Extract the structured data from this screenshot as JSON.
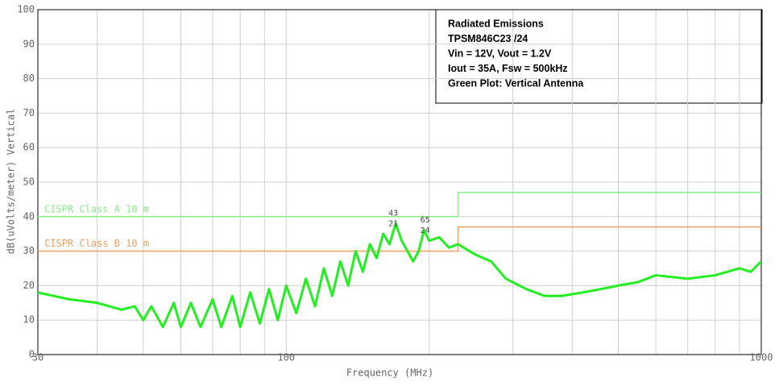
{
  "chart_data": {
    "type": "line",
    "box_lines": [
      "Radiated Emissions",
      "TPSM846C23 /24",
      "Vin = 12V, Vout = 1.2V",
      "Iout = 35A, Fsw = 500kHz",
      "Green Plot: Vertical Antenna"
    ],
    "xlabel": "Frequency (MHz)",
    "ylabel": "dB(uVolts/meter) Vertical",
    "xscale": "log",
    "xlim": [
      30,
      1000
    ],
    "ylim": [
      0,
      100
    ],
    "xticks": [
      30,
      100,
      1000
    ],
    "xgrid": [
      40,
      50,
      60,
      70,
      80,
      90,
      200,
      300,
      400,
      500,
      600,
      700,
      800,
      900
    ],
    "yticks": [
      10,
      20,
      30,
      40,
      50,
      60,
      70,
      80,
      90,
      100
    ],
    "grid": true,
    "x": [
      30,
      35,
      40,
      45,
      48,
      50,
      52,
      55,
      58,
      60,
      63,
      66,
      70,
      73,
      77,
      80,
      84,
      88,
      92,
      96,
      100,
      105,
      110,
      115,
      120,
      125,
      130,
      135,
      140,
      145,
      150,
      155,
      160,
      165,
      170,
      175,
      180,
      185,
      190,
      195,
      200,
      210,
      220,
      230,
      250,
      270,
      290,
      320,
      350,
      380,
      420,
      460,
      500,
      550,
      600,
      700,
      800,
      900,
      950,
      1000
    ],
    "values": [
      18,
      16,
      15,
      13,
      14,
      10,
      14,
      8,
      15,
      8,
      15,
      8,
      16,
      8,
      17,
      8,
      18,
      9,
      19,
      10,
      20,
      12,
      22,
      14,
      25,
      17,
      27,
      20,
      30,
      24,
      32,
      28,
      35,
      32,
      38,
      33,
      30,
      27,
      30,
      36,
      33,
      34,
      31,
      32,
      29,
      27,
      22,
      19,
      17,
      17,
      18,
      19,
      20,
      21,
      23,
      22,
      23,
      25,
      24,
      27
    ],
    "color": "#22ee22",
    "limits": [
      {
        "name": "CISPR Class A 10 m",
        "color": "#88ee88",
        "x": [
          30,
          230,
          230,
          1000
        ],
        "values": [
          40,
          40,
          47,
          47
        ]
      },
      {
        "name": "CISPR Class B 10 m",
        "color": "#f0a060",
        "x": [
          30,
          230,
          230,
          1000
        ],
        "values": [
          30,
          30,
          37,
          37
        ]
      }
    ],
    "markers": [
      {
        "text": "43",
        "x": 168,
        "y": 41
      },
      {
        "text": "21",
        "x": 168,
        "y": 38
      },
      {
        "text": "65",
        "x": 196,
        "y": 39
      },
      {
        "text": "24",
        "x": 196,
        "y": 36
      }
    ]
  }
}
